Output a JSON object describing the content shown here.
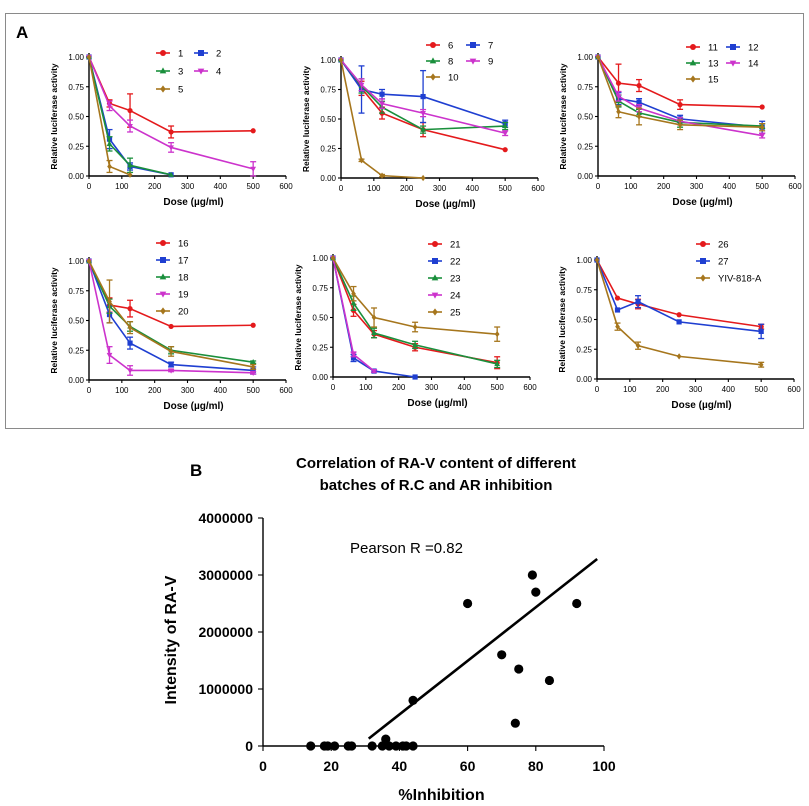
{
  "panel_labels": {
    "a": "A",
    "b": "B"
  },
  "chart_data": [
    {
      "type": "line",
      "panel": "A",
      "xlabel": "Dose (µg/ml)",
      "ylabel": "Relative luciferase activity",
      "xlim": [
        0,
        600
      ],
      "ylim": [
        0,
        1.0
      ],
      "xticks": [
        "0",
        "100",
        "200",
        "300",
        "400",
        "500",
        "600"
      ],
      "yticks": [
        "0.00",
        "0.25",
        "0.50",
        "0.75",
        "1.00"
      ],
      "series": [
        {
          "name": "1",
          "color": "#e41a1c",
          "marker": "circle",
          "x": [
            0,
            62.5,
            125,
            250,
            500
          ],
          "values": [
            1.0,
            0.61,
            0.55,
            0.37,
            0.38
          ],
          "errors": [
            0,
            0.03,
            0.14,
            0.05,
            0
          ]
        },
        {
          "name": "2",
          "color": "#1f3fd1",
          "marker": "square",
          "x": [
            0,
            62.5,
            125,
            250
          ],
          "values": [
            1.0,
            0.31,
            0.08,
            0.01
          ],
          "errors": [
            0,
            0.08,
            0.03,
            0
          ]
        },
        {
          "name": "3",
          "color": "#1a8f3c",
          "marker": "triangle-up",
          "x": [
            0,
            62.5,
            125,
            250
          ],
          "values": [
            1.0,
            0.27,
            0.09,
            0.01
          ],
          "errors": [
            0,
            0.06,
            0.06,
            0
          ]
        },
        {
          "name": "4",
          "color": "#cc33cc",
          "marker": "triangle-down",
          "x": [
            0,
            62.5,
            125,
            250,
            500
          ],
          "values": [
            1.0,
            0.59,
            0.42,
            0.24,
            0.06
          ],
          "errors": [
            0,
            0.04,
            0.05,
            0.04,
            0.06
          ]
        },
        {
          "name": "5",
          "color": "#a6761d",
          "marker": "diamond",
          "x": [
            0,
            62.5,
            125
          ],
          "values": [
            1.0,
            0.08,
            0.01
          ],
          "errors": [
            0,
            0.05,
            0
          ]
        }
      ]
    },
    {
      "type": "line",
      "panel": "A",
      "xlabel": "Dose (µg/ml)",
      "ylabel": "Relative luciferase activity",
      "xlim": [
        0,
        600
      ],
      "ylim": [
        0,
        1.0
      ],
      "xticks": [
        "0",
        "100",
        "200",
        "300",
        "400",
        "500",
        "600"
      ],
      "yticks": [
        "0.00",
        "0.25",
        "0.50",
        "0.75",
        "1.00"
      ],
      "series": [
        {
          "name": "6",
          "color": "#e41a1c",
          "marker": "circle",
          "x": [
            0,
            62.5,
            125,
            250,
            500
          ],
          "values": [
            1.0,
            0.76,
            0.55,
            0.41,
            0.24
          ],
          "errors": [
            0,
            0.06,
            0.05,
            0.06,
            0
          ]
        },
        {
          "name": "7",
          "color": "#1f3fd1",
          "marker": "square",
          "x": [
            0,
            62.5,
            125,
            250,
            500
          ],
          "values": [
            1.0,
            0.75,
            0.71,
            0.69,
            0.46
          ],
          "errors": [
            0,
            0.2,
            0.04,
            0.22,
            0.03
          ]
        },
        {
          "name": "8",
          "color": "#1a8f3c",
          "marker": "triangle-up",
          "x": [
            0,
            62.5,
            125,
            250,
            500
          ],
          "values": [
            1.0,
            0.78,
            0.6,
            0.41,
            0.44
          ],
          "errors": [
            0,
            0.06,
            0.05,
            0.03,
            0.03
          ]
        },
        {
          "name": "9",
          "color": "#cc33cc",
          "marker": "triangle-down",
          "x": [
            0,
            62.5,
            125,
            250,
            500
          ],
          "values": [
            1.0,
            0.79,
            0.63,
            0.55,
            0.38
          ],
          "errors": [
            0,
            0.05,
            0.04,
            0.03,
            0.02
          ]
        },
        {
          "name": "10",
          "color": "#a6761d",
          "marker": "diamond",
          "x": [
            0,
            62.5,
            125,
            250
          ],
          "values": [
            1.0,
            0.15,
            0.02,
            0.0
          ],
          "errors": [
            0,
            0.01,
            0.01,
            0
          ]
        }
      ]
    },
    {
      "type": "line",
      "panel": "A",
      "xlabel": "Dose (µg/ml)",
      "ylabel": "Relative luciferase activity",
      "xlim": [
        0,
        600
      ],
      "ylim": [
        0,
        1.0
      ],
      "xticks": [
        "0",
        "100",
        "200",
        "300",
        "400",
        "500",
        "600"
      ],
      "yticks": [
        "0.00",
        "0.25",
        "0.50",
        "0.75",
        "1.00"
      ],
      "series": [
        {
          "name": "11",
          "color": "#e41a1c",
          "marker": "circle",
          "x": [
            0,
            62.5,
            125,
            250,
            500
          ],
          "values": [
            1.0,
            0.78,
            0.76,
            0.6,
            0.58
          ],
          "errors": [
            0,
            0.16,
            0.05,
            0.04,
            0
          ]
        },
        {
          "name": "12",
          "color": "#1f3fd1",
          "marker": "square",
          "x": [
            0,
            62.5,
            125,
            250,
            500
          ],
          "values": [
            1.0,
            0.65,
            0.62,
            0.48,
            0.41
          ],
          "errors": [
            0,
            0.05,
            0.03,
            0.03,
            0.05
          ]
        },
        {
          "name": "13",
          "color": "#1a8f3c",
          "marker": "triangle-up",
          "x": [
            0,
            62.5,
            125,
            250,
            500
          ],
          "values": [
            1.0,
            0.63,
            0.53,
            0.45,
            0.42
          ],
          "errors": [
            0,
            0.05,
            0.03,
            0.04,
            0.02
          ]
        },
        {
          "name": "14",
          "color": "#cc33cc",
          "marker": "triangle-down",
          "x": [
            0,
            62.5,
            125,
            250,
            500
          ],
          "values": [
            1.0,
            0.67,
            0.57,
            0.46,
            0.34
          ],
          "errors": [
            0,
            0.04,
            0.03,
            0.03,
            0.02
          ]
        },
        {
          "name": "15",
          "color": "#a6761d",
          "marker": "diamond",
          "x": [
            0,
            62.5,
            125,
            250,
            500
          ],
          "values": [
            1.0,
            0.54,
            0.5,
            0.43,
            0.41
          ],
          "errors": [
            0,
            0.05,
            0.07,
            0.04,
            0.03
          ]
        }
      ]
    },
    {
      "type": "line",
      "panel": "A",
      "xlabel": "Dose (µg/ml)",
      "ylabel": "Relative luciferase activity",
      "xlim": [
        0,
        600
      ],
      "ylim": [
        0,
        1.0
      ],
      "xticks": [
        "0",
        "100",
        "200",
        "300",
        "400",
        "500",
        "600"
      ],
      "yticks": [
        "0.00",
        "0.25",
        "0.50",
        "0.75",
        "1.00"
      ],
      "series": [
        {
          "name": "16",
          "color": "#e41a1c",
          "marker": "circle",
          "x": [
            0,
            62.5,
            125,
            250,
            500
          ],
          "values": [
            1.0,
            0.63,
            0.6,
            0.45,
            0.46
          ],
          "errors": [
            0,
            0.06,
            0.07,
            0,
            0
          ]
        },
        {
          "name": "17",
          "color": "#1f3fd1",
          "marker": "square",
          "x": [
            0,
            62.5,
            125,
            250,
            500
          ],
          "values": [
            1.0,
            0.55,
            0.31,
            0.13,
            0.08
          ],
          "errors": [
            0,
            0.07,
            0.05,
            0.02,
            0.03
          ]
        },
        {
          "name": "18",
          "color": "#1a8f3c",
          "marker": "triangle-up",
          "x": [
            0,
            62.5,
            125,
            250,
            500
          ],
          "values": [
            1.0,
            0.62,
            0.45,
            0.25,
            0.15
          ],
          "errors": [
            0,
            0.06,
            0.04,
            0.03,
            0.01
          ]
        },
        {
          "name": "19",
          "color": "#cc33cc",
          "marker": "triangle-down",
          "x": [
            0,
            62.5,
            125,
            250,
            500
          ],
          "values": [
            1.0,
            0.21,
            0.08,
            0.08,
            0.06
          ],
          "errors": [
            0,
            0.07,
            0.04,
            0.01,
            0.01
          ]
        },
        {
          "name": "20",
          "color": "#a6761d",
          "marker": "diamond",
          "x": [
            0,
            62.5,
            125,
            250,
            500
          ],
          "values": [
            1.0,
            0.66,
            0.44,
            0.24,
            0.11
          ],
          "errors": [
            0,
            0.18,
            0.05,
            0.04,
            0.02
          ]
        }
      ]
    },
    {
      "type": "line",
      "panel": "A",
      "xlabel": "Dose (µg/ml)",
      "ylabel": "Relative luciferase activity",
      "xlim": [
        0,
        600
      ],
      "ylim": [
        0,
        1.0
      ],
      "xticks": [
        "0",
        "100",
        "200",
        "300",
        "400",
        "500",
        "600"
      ],
      "yticks": [
        "0.00",
        "0.25",
        "0.50",
        "0.75",
        "1.00"
      ],
      "series": [
        {
          "name": "21",
          "color": "#e41a1c",
          "marker": "circle",
          "x": [
            0,
            62.5,
            125,
            250,
            500
          ],
          "values": [
            1.0,
            0.56,
            0.36,
            0.25,
            0.12
          ],
          "errors": [
            0,
            0.05,
            0.03,
            0.03,
            0.05
          ]
        },
        {
          "name": "22",
          "color": "#1f3fd1",
          "marker": "square",
          "x": [
            0,
            62.5,
            125,
            250
          ],
          "values": [
            1.0,
            0.16,
            0.05,
            0.0
          ],
          "errors": [
            0,
            0.03,
            0.01,
            0
          ]
        },
        {
          "name": "23",
          "color": "#1a8f3c",
          "marker": "triangle-up",
          "x": [
            0,
            62.5,
            125,
            250,
            500
          ],
          "values": [
            1.0,
            0.62,
            0.37,
            0.27,
            0.11
          ],
          "errors": [
            0,
            0.06,
            0.04,
            0.03,
            0.03
          ]
        },
        {
          "name": "24",
          "color": "#cc33cc",
          "marker": "triangle-down",
          "x": [
            0,
            62.5,
            125
          ],
          "values": [
            1.0,
            0.19,
            0.05
          ],
          "errors": [
            0,
            0.02,
            0.01
          ]
        },
        {
          "name": "25",
          "color": "#a6761d",
          "marker": "diamond",
          "x": [
            0,
            62.5,
            125,
            250,
            500
          ],
          "values": [
            1.0,
            0.7,
            0.5,
            0.42,
            0.36
          ],
          "errors": [
            0,
            0.06,
            0.08,
            0.04,
            0.06
          ]
        }
      ]
    },
    {
      "type": "line",
      "panel": "A",
      "xlabel": "Dose (µg/ml)",
      "ylabel": "Relative luciferase activity",
      "xlim": [
        0,
        600
      ],
      "ylim": [
        0,
        1.0
      ],
      "xticks": [
        "0",
        "100",
        "200",
        "300",
        "400",
        "500",
        "600"
      ],
      "yticks": [
        "0.00",
        "0.25",
        "0.50",
        "0.75",
        "1.00"
      ],
      "series": [
        {
          "name": "26",
          "color": "#e41a1c",
          "marker": "circle",
          "x": [
            0,
            62.5,
            125,
            250,
            500
          ],
          "values": [
            1.0,
            0.68,
            0.63,
            0.54,
            0.44
          ],
          "errors": [
            0,
            0,
            0.04,
            0,
            0.02
          ]
        },
        {
          "name": "27",
          "color": "#1f3fd1",
          "marker": "square",
          "x": [
            0,
            62.5,
            125,
            250,
            500
          ],
          "values": [
            1.0,
            0.58,
            0.65,
            0.48,
            0.4
          ],
          "errors": [
            0,
            0,
            0.05,
            0,
            0.06
          ]
        },
        {
          "name": "YIV-818-A",
          "color": "#a6761d",
          "marker": "diamond",
          "x": [
            0,
            62.5,
            125,
            250,
            500
          ],
          "values": [
            1.0,
            0.44,
            0.28,
            0.19,
            0.12
          ],
          "errors": [
            0,
            0.03,
            0.03,
            0,
            0.02
          ]
        }
      ]
    },
    {
      "type": "scatter",
      "panel": "B",
      "title_lines": [
        "Correlation of RA-V content of different",
        "batches of R.C and AR inhibition"
      ],
      "xlabel": "%Inhibition",
      "ylabel": "Intensity of RA-V",
      "xlim": [
        0,
        100
      ],
      "ylim": [
        0,
        4000000
      ],
      "xticks": [
        "0",
        "20",
        "40",
        "60",
        "80",
        "100"
      ],
      "yticks": [
        "0",
        "1000000",
        "2000000",
        "3000000",
        "4000000"
      ],
      "annotation": "Pearson R =0.82",
      "points": [
        [
          14,
          0
        ],
        [
          18,
          0
        ],
        [
          19,
          0
        ],
        [
          21,
          0
        ],
        [
          25,
          0
        ],
        [
          26,
          0
        ],
        [
          32,
          0
        ],
        [
          35,
          0
        ],
        [
          36,
          120000
        ],
        [
          37,
          0
        ],
        [
          39,
          0
        ],
        [
          41,
          0
        ],
        [
          42,
          0
        ],
        [
          44,
          0
        ],
        [
          44,
          800000
        ],
        [
          60,
          2500000
        ],
        [
          70,
          1600000
        ],
        [
          74,
          400000
        ],
        [
          75,
          1350000
        ],
        [
          79,
          3000000
        ],
        [
          80,
          2700000
        ],
        [
          84,
          1150000
        ],
        [
          92,
          2500000
        ]
      ],
      "fit_line": {
        "x": [
          31,
          98
        ],
        "y": [
          130000,
          3280000
        ]
      }
    }
  ]
}
